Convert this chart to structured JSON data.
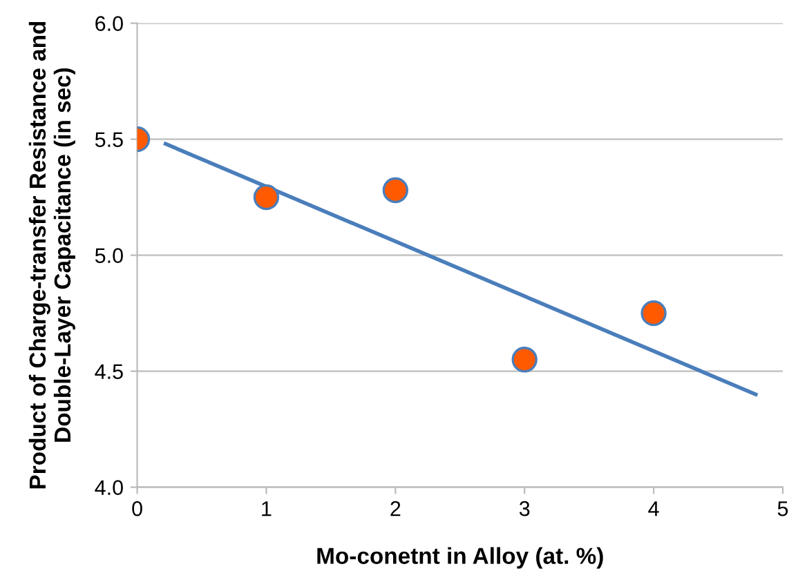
{
  "chart_data": {
    "type": "scatter",
    "xlabel": "Mo-conetnt in Alloy (at. %)",
    "ylabel": "Product of Charge-transfer Resistance and\nDouble-Layer Capacitance (in sec)",
    "xlim": [
      0,
      5
    ],
    "xticks": [
      0,
      1,
      2,
      3,
      4,
      5
    ],
    "ylim": [
      4.0,
      6.0
    ],
    "yticks": [
      {
        "value": 4.0,
        "label": "4.0"
      },
      {
        "value": 4.5,
        "label": "4.5"
      },
      {
        "value": 5.0,
        "label": "5.0"
      },
      {
        "value": 5.5,
        "label": "5.5"
      },
      {
        "value": 6.0,
        "label": "6.0"
      }
    ],
    "grid": "y",
    "series": [
      {
        "marker": "circle",
        "color": "#ff5a00",
        "x": [
          0,
          1,
          2,
          3,
          4
        ],
        "values": [
          5.5,
          5.25,
          5.28,
          4.55,
          4.75
        ]
      },
      {
        "type": "line",
        "marker": "none",
        "color": "#4a7ebb",
        "x": [
          0.22,
          4.79
        ],
        "values": [
          5.48,
          4.4
        ]
      }
    ]
  }
}
